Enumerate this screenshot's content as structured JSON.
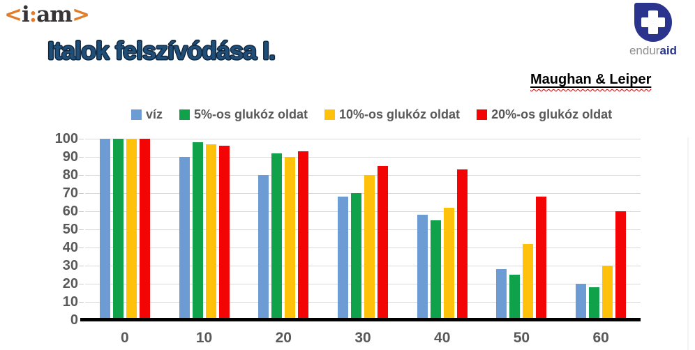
{
  "header": {
    "iam_logo": {
      "lt": "<",
      "i": "i",
      "colon": ":",
      "am": "am",
      "gt": ">"
    },
    "title": "Italok felszívódása I.",
    "attribution": "Maughan & Leiper",
    "enduraid": {
      "endur": "endur",
      "aid": "aid"
    }
  },
  "chart_data": {
    "type": "bar",
    "title": "",
    "xlabel": "",
    "ylabel": "",
    "categories": [
      "0",
      "10",
      "20",
      "30",
      "40",
      "50",
      "60"
    ],
    "series": [
      {
        "name": "víz",
        "color": "#6D9BD3",
        "values": [
          100,
          90,
          80,
          68,
          58,
          28,
          20
        ]
      },
      {
        "name": "5%-os glukóz oldat",
        "color": "#10A24B",
        "values": [
          100,
          98,
          92,
          70,
          55,
          25,
          18
        ]
      },
      {
        "name": "10%-os glukóz oldat",
        "color": "#FFC10A",
        "values": [
          100,
          97,
          90,
          80,
          62,
          42,
          30
        ]
      },
      {
        "name": "20%-os glukóz oldat",
        "color": "#F40505",
        "values": [
          100,
          96,
          93,
          85,
          83,
          68,
          60
        ]
      }
    ],
    "ylim": [
      0,
      100
    ],
    "yticks": [
      0,
      10,
      20,
      30,
      40,
      50,
      60,
      70,
      80,
      90,
      100
    ],
    "grid": true,
    "legend_position": "top"
  },
  "styles": {
    "axis_color": "#000000",
    "grid_color": "#D9D9D9",
    "tick_label_color": "#595959",
    "title_color": "#1F4E79",
    "iam_orange": "#E27C29",
    "iam_dark": "#363435",
    "enduraid_navy": "#2A348C"
  }
}
